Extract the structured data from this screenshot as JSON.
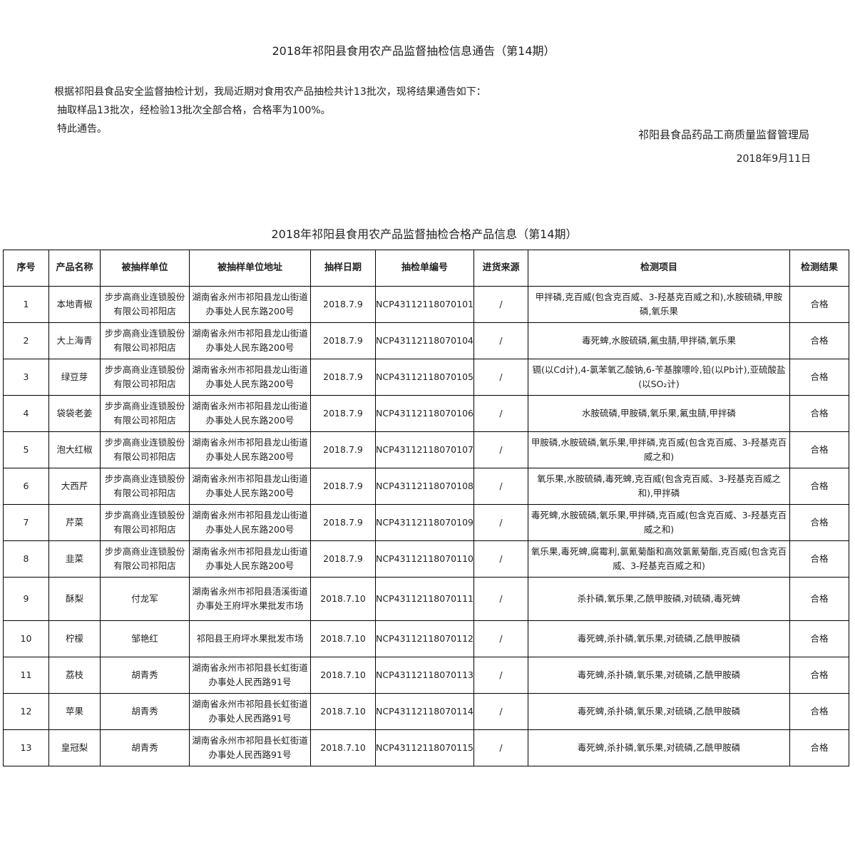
{
  "notice": {
    "title": "2018年祁阳县食用农产品监督抽检信息通告（第14期）",
    "para1": "根据祁阳县食品安全监督抽检计划，我局近期对食用农产品抽检共计13批次，现将结果通告如下：",
    "para2": "抽取样品13批次，经检验13批次全部合格，合格率为100%。",
    "para3": "特此通告。",
    "agency": "祁阳县食品药品工商质量监督管理局",
    "date": "2018年9月11日"
  },
  "table": {
    "title": "2018年祁阳县食用农产品监督抽检合格产品信息（第14期）",
    "headers": [
      "序号",
      "产品名称",
      "被抽样单位",
      "被抽样单位地址",
      "抽样日期",
      "抽检单编号",
      "进货来源",
      "检测项目",
      "检测结果"
    ],
    "rows": [
      [
        "1",
        "本地青椒",
        "步步高商业连锁股份有限公司祁阳店",
        "湖南省永州市祁阳县龙山街道办事处人民东路200号",
        "2018.7.9",
        "NCP43112118070101",
        "/",
        "甲拌磷,克百威(包含克百威、3-羟基克百威之和),水胺硫磷,甲胺磷,氧乐果",
        "合格"
      ],
      [
        "2",
        "大上海青",
        "步步高商业连锁股份有限公司祁阳店",
        "湖南省永州市祁阳县龙山街道办事处人民东路200号",
        "2018.7.9",
        "NCP43112118070104",
        "/",
        "毒死蜱,水胺硫磷,氟虫腈,甲拌磷,氧乐果",
        "合格"
      ],
      [
        "3",
        "绿豆芽",
        "步步高商业连锁股份有限公司祁阳店",
        "湖南省永州市祁阳县龙山街道办事处人民东路200号",
        "2018.7.9",
        "NCP43112118070105",
        "/",
        "镉(以Cd计),4-氯苯氧乙酸钠,6-苄基腺嘌呤,铅(以Pb计),亚硫酸盐(以SO₂计)",
        "合格"
      ],
      [
        "4",
        "袋袋老姜",
        "步步高商业连锁股份有限公司祁阳店",
        "湖南省永州市祁阳县龙山街道办事处人民东路200号",
        "2018.7.9",
        "NCP43112118070106",
        "/",
        "水胺硫磷,甲胺磷,氧乐果,氟虫腈,甲拌磷",
        "合格"
      ],
      [
        "5",
        "泡大红椒",
        "步步高商业连锁股份有限公司祁阳店",
        "湖南省永州市祁阳县龙山街道办事处人民东路200号",
        "2018.7.9",
        "NCP43112118070107",
        "/",
        "甲胺磷,水胺硫磷,氧乐果,甲拌磷,克百威(包含克百威、3-羟基克百威之和)",
        "合格"
      ],
      [
        "6",
        "大西芹",
        "步步高商业连锁股份有限公司祁阳店",
        "湖南省永州市祁阳县龙山街道办事处人民东路200号",
        "2018.7.9",
        "NCP43112118070108",
        "/",
        "氧乐果,水胺硫磷,毒死蜱,克百威(包含克百威、3-羟基克百威之和),甲拌磷",
        "合格"
      ],
      [
        "7",
        "芹菜",
        "步步高商业连锁股份有限公司祁阳店",
        "湖南省永州市祁阳县龙山街道办事处人民东路200号",
        "2018.7.9",
        "NCP43112118070109",
        "/",
        "毒死蜱,水胺硫磷,氧乐果,甲拌磷,克百威(包含克百威、3-羟基克百威之和)",
        "合格"
      ],
      [
        "8",
        "韭菜",
        "步步高商业连锁股份有限公司祁阳店",
        "湖南省永州市祁阳县龙山街道办事处人民东路200号",
        "2018.7.9",
        "NCP43112118070110",
        "/",
        "氧乐果,毒死蜱,腐霉利,氯氰菊酯和高效氯氰菊酯,克百威(包含克百威、3-羟基克百威之和)",
        "合格"
      ],
      [
        "9",
        "酥梨",
        "付龙军",
        "湖南省永州市祁阳县浯溪街道办事处王府坪水果批发市场",
        "2018.7.10",
        "NCP43112118070111",
        "/",
        "杀扑磷,氧乐果,乙酰甲胺磷,对硫磷,毒死蜱",
        "合格"
      ],
      [
        "10",
        "柠檬",
        "邹艳红",
        "祁阳县王府坪水果批发市场",
        "2018.7.10",
        "NCP43112118070112",
        "/",
        "毒死蜱,杀扑磷,氧乐果,对硫磷,乙酰甲胺磷",
        "合格"
      ],
      [
        "11",
        "荔枝",
        "胡青秀",
        "湖南省永州市祁阳县长虹街道办事处人民西路91号",
        "2018.7.10",
        "NCP43112118070113",
        "/",
        "毒死蜱,杀扑磷,氧乐果,对硫磷,乙酰甲胺磷",
        "合格"
      ],
      [
        "12",
        "苹果",
        "胡青秀",
        "湖南省永州市祁阳县长虹街道办事处人民西路91号",
        "2018.7.10",
        "NCP43112118070114",
        "/",
        "毒死蜱,杀扑磷,氧乐果,对硫磷,乙酰甲胺磷",
        "合格"
      ],
      [
        "13",
        "皇冠梨",
        "胡青秀",
        "湖南省永州市祁阳县长虹街道办事处人民西路91号",
        "2018.7.10",
        "NCP43112118070115",
        "/",
        "毒死蜱,杀扑磷,氧乐果,对硫磷,乙酰甲胺磷",
        "合格"
      ]
    ]
  }
}
